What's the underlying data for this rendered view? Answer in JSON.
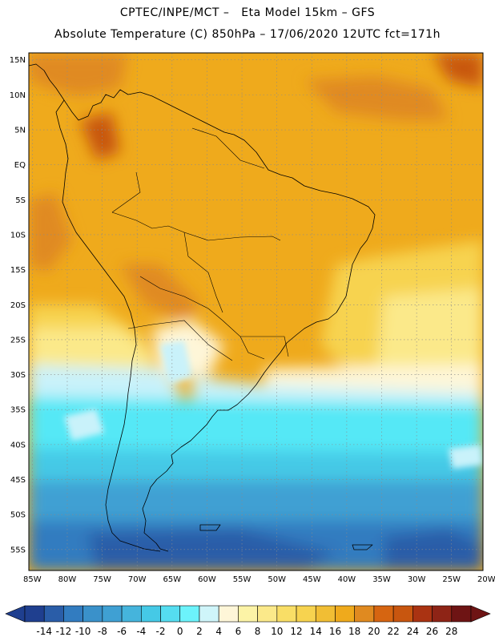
{
  "header": {
    "title_line1": "CPTEC/INPE/MCT –   Eta Model 15km – GFS",
    "title_line2": "Absolute Temperature (C) 850hPa – 17/06/2020 12UTC fct=171h"
  },
  "map": {
    "lat_labels": [
      "15N",
      "10N",
      "5N",
      "EQ",
      "5S",
      "10S",
      "15S",
      "20S",
      "25S",
      "30S",
      "35S",
      "40S",
      "45S",
      "50S",
      "55S"
    ],
    "lon_labels": [
      "85W",
      "80W",
      "75W",
      "70W",
      "65W",
      "60W",
      "55W",
      "50W",
      "45W",
      "40W",
      "35W",
      "30W",
      "25W",
      "20W"
    ],
    "lat_values": [
      15,
      10,
      5,
      0,
      -5,
      -10,
      -15,
      -20,
      -25,
      -30,
      -35,
      -40,
      -45,
      -50,
      -55
    ],
    "lon_values": [
      -85,
      -80,
      -75,
      -70,
      -65,
      -60,
      -55,
      -50,
      -45,
      -40,
      -35,
      -30,
      -25,
      -20
    ],
    "extent": {
      "lon_min": -85.5,
      "lon_max": -20.5,
      "lat_min": -58.0,
      "lat_max": 16.0
    },
    "gridlines": true,
    "field_colors": {
      "warm": "#EFAA1C",
      "orange": "#E08A20",
      "hot": "#C8560F",
      "yellow": "#F7D34F",
      "pale_yellow": "#FBE98A",
      "cream": "#FEF6D8",
      "pale_cyan": "#C9F2FA",
      "cyan": "#55E8F6",
      "light_blue": "#45C9E6",
      "mid_blue": "#3FA0D3",
      "blue": "#327CC0",
      "deep_blue": "#2A5DA8"
    }
  },
  "colorbar": {
    "labels": [
      "-14",
      "-12",
      "-10",
      "-8",
      "-6",
      "-4",
      "-2",
      "0",
      "2",
      "4",
      "6",
      "8",
      "10",
      "12",
      "14",
      "16",
      "18",
      "20",
      "22",
      "24",
      "26",
      "28"
    ],
    "colors": [
      "#1F3F8F",
      "#2A5DA8",
      "#327CC0",
      "#3A91CA",
      "#3FA0D3",
      "#45B4DC",
      "#45C9E6",
      "#55DDF0",
      "#6CF3FB",
      "#CFF5FA",
      "#FEF6D8",
      "#FCF3A6",
      "#FBE98A",
      "#F9DE66",
      "#F7D34F",
      "#F1BE34",
      "#EFAA1C",
      "#E08A20",
      "#D66511",
      "#C8560F",
      "#AA3312",
      "#8E2416",
      "#6E1414"
    ]
  }
}
